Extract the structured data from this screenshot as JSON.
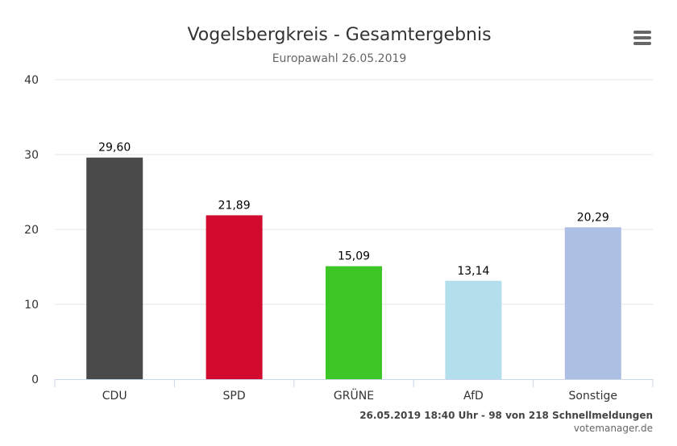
{
  "chart_data": {
    "type": "bar",
    "title": "Vogelsbergkreis - Gesamtergebnis",
    "subtitle": "Europawahl 26.05.2019",
    "categories": [
      "CDU",
      "SPD",
      "GRÜNE",
      "AfD",
      "Sonstige"
    ],
    "values": [
      29.6,
      21.89,
      15.09,
      13.14,
      20.29
    ],
    "value_labels": [
      "29,60",
      "21,89",
      "15,09",
      "13,14",
      "20,29"
    ],
    "colors": [
      "#4a4a4a",
      "#d20a2e",
      "#3cc726",
      "#b3dfec",
      "#adc0e3"
    ],
    "ylim": [
      0,
      40
    ],
    "yticks": [
      "0",
      "10",
      "20",
      "30",
      "40"
    ],
    "xlabel": "",
    "ylabel": "",
    "grid": true,
    "legend": "none"
  },
  "credits": {
    "line1": "26.05.2019 18:40 Uhr - 98 von 218 Schnellmeldungen",
    "line2": "votemanager.de"
  },
  "menu": {
    "icon": "hamburger-menu-icon"
  }
}
